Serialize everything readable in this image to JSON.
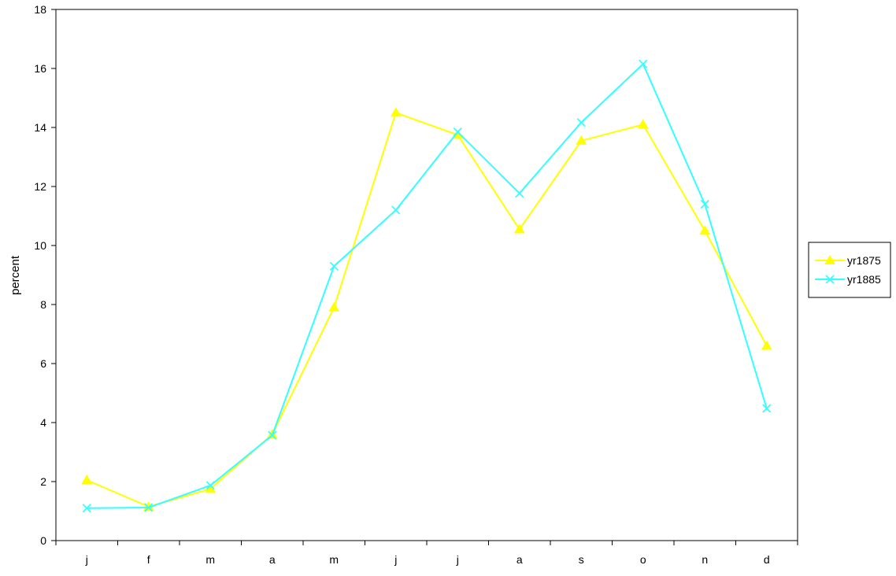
{
  "chart_data": {
    "type": "line",
    "title": "",
    "xlabel": "",
    "ylabel": "percent",
    "categories": [
      "j",
      "f",
      "m",
      "a",
      "m",
      "j",
      "j",
      "a",
      "s",
      "o",
      "n",
      "d"
    ],
    "ylim": [
      0,
      18
    ],
    "yticks": [
      0,
      2,
      4,
      6,
      8,
      10,
      12,
      14,
      16,
      18
    ],
    "grid": false,
    "legend_position": "right",
    "series": [
      {
        "name": "yr1875",
        "color": "#ffff00",
        "marker": "triangle",
        "values": [
          2.05,
          1.15,
          1.75,
          3.6,
          7.9,
          14.5,
          13.75,
          10.55,
          13.55,
          14.1,
          10.5,
          6.6
        ]
      },
      {
        "name": "yr1885",
        "color": "#33ffff",
        "marker": "x",
        "values": [
          1.1,
          1.12,
          1.87,
          3.57,
          9.3,
          11.2,
          13.85,
          11.77,
          14.17,
          16.15,
          11.4,
          4.48
        ]
      }
    ]
  }
}
